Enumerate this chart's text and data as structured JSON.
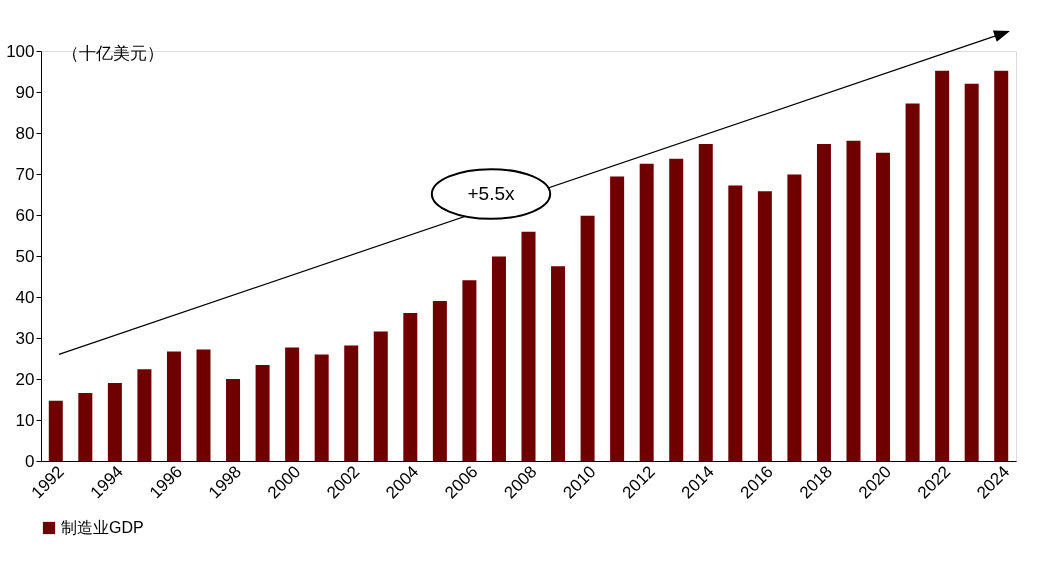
{
  "chart_data": {
    "type": "bar",
    "ylabel": "（十亿美元）",
    "categories": [
      "1992",
      null,
      "1994",
      null,
      "1996",
      null,
      "1998",
      null,
      "2000",
      null,
      "2002",
      null,
      "2004",
      null,
      "2006",
      null,
      "2008",
      null,
      "2010",
      null,
      "2012",
      null,
      "2014",
      null,
      "2016",
      null,
      "2018",
      null,
      "2020",
      null,
      "2022",
      null,
      "2024"
    ],
    "series": [
      {
        "name": "制造业GDP",
        "color": "#6e0000",
        "values": [
          14.7,
          16.6,
          19.0,
          22.4,
          26.7,
          27.2,
          20.0,
          23.4,
          27.7,
          26.0,
          28.2,
          31.6,
          36.1,
          39.0,
          44.1,
          49.9,
          55.9,
          47.5,
          59.8,
          69.4,
          72.5,
          73.7,
          77.3,
          67.2,
          65.8,
          69.9,
          77.3,
          78.1,
          75.2,
          87.2,
          95.2,
          92.0,
          95.2
        ]
      }
    ],
    "ylim": [
      0,
      100
    ],
    "yticks": [
      0,
      10,
      20,
      30,
      40,
      50,
      60,
      70,
      80,
      90,
      100
    ],
    "grid": false,
    "legend": "bottom",
    "annotations": [
      "+5.5x"
    ]
  }
}
